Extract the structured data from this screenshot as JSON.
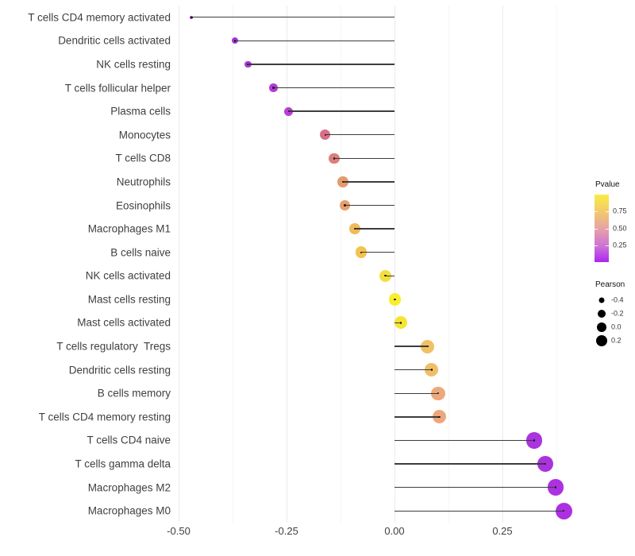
{
  "chart_data": {
    "type": "scatter",
    "subtype": "lollipop",
    "title": "",
    "xlabel": "",
    "ylabel": "",
    "grid": "vertical-major-and-minor",
    "legend_position": "right",
    "xlim": [
      -0.512,
      0.435
    ],
    "x_ticks": {
      "values": [
        -0.5,
        -0.25,
        0.0,
        0.25
      ],
      "labels": [
        "-0.50",
        "-0.25",
        "0.00",
        "0.25"
      ]
    },
    "categories": [
      "T cells CD4 memory activated",
      "Dendritic cells activated",
      "NK cells resting",
      "T cells follicular helper",
      "Plasma cells",
      "Monocytes",
      "T cells CD8",
      "Neutrophils",
      "Eosinophils",
      "Macrophages M1",
      "B cells naive",
      "NK cells activated",
      "Mast cells resting",
      "Mast cells activated",
      "T cells regulatory  Tregs",
      "Dendritic cells resting",
      "B cells memory",
      "T cells CD4 memory resting",
      "T cells CD4 naive",
      "T cells gamma delta",
      "Macrophages M2",
      "Macrophages M0"
    ],
    "series": [
      {
        "name": "Pearson",
        "values": [
          -0.47,
          -0.37,
          -0.34,
          -0.28,
          -0.245,
          -0.16,
          -0.14,
          -0.12,
          -0.115,
          -0.092,
          -0.077,
          -0.021,
          0.001,
          0.015,
          0.077,
          0.086,
          0.101,
          0.104,
          0.323,
          0.349,
          0.373,
          0.392
        ]
      }
    ],
    "point_colors": [
      "#9A34C6",
      "#A337DB",
      "#A939DC",
      "#B33CD7",
      "#B93ED3",
      "#D76F87",
      "#DC7E7C",
      "#E59A6E",
      "#E79E6A",
      "#F0BB58",
      "#F2C351",
      "#F4DE3B",
      "#F9ED2E",
      "#F6E434",
      "#F0C163",
      "#EFBE66",
      "#EDA97B",
      "#EDA77C",
      "#AA34DD",
      "#AB32DF",
      "#AC31E0",
      "#AD2FE2"
    ],
    "segment_color": "#3d3d3d",
    "legends": [
      {
        "type": "colorbar",
        "title": "Pvalue",
        "tick_labels": [
          "0.75",
          "0.50",
          "0.25"
        ],
        "tick_values": [
          0.75,
          0.5,
          0.25
        ],
        "range": [
          0.01,
          1.0
        ],
        "gradient_stops": [
          {
            "color": "#AC26F0",
            "pos": 0
          },
          {
            "color": "#CB6FD8",
            "pos": 22
          },
          {
            "color": "#E59DAC",
            "pos": 47
          },
          {
            "color": "#F2C96E",
            "pos": 74
          },
          {
            "color": "#F9ED44",
            "pos": 100
          }
        ]
      },
      {
        "type": "size",
        "title": "Pearson",
        "labels": [
          "-0.4",
          "-0.2",
          "0.0",
          "0.2"
        ],
        "values": [
          -0.4,
          -0.2,
          0.0,
          0.2
        ],
        "dot_color": "#000000"
      }
    ]
  }
}
